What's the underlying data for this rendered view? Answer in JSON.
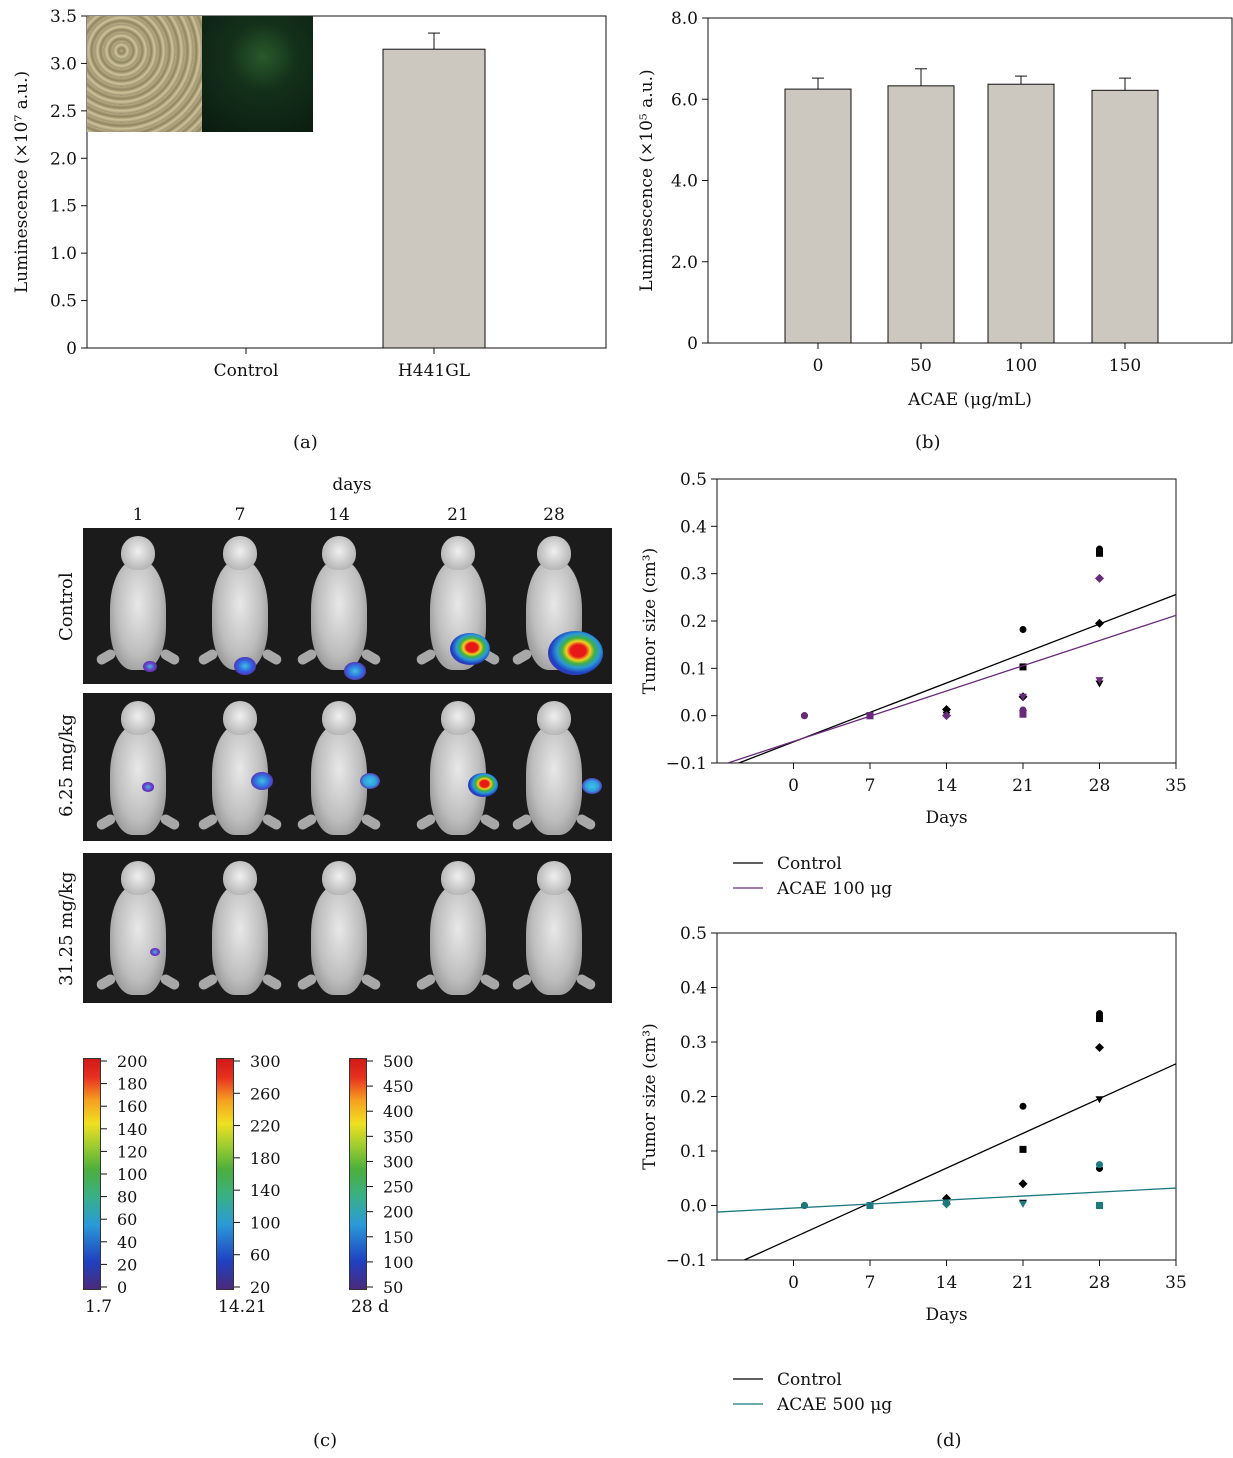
{
  "panel_captions": {
    "a": "(a)",
    "b": "(b)",
    "c": "(c)",
    "d": "(d)"
  },
  "chart_data": [
    {
      "id": "a",
      "type": "bar",
      "categories": [
        "Control",
        "H441GL"
      ],
      "values": [
        0,
        3.15
      ],
      "errors": [
        0,
        0.17
      ],
      "ylabel": "Luminescence (×10⁷ a.u.)",
      "ylim": [
        0,
        3.5
      ],
      "yticks": [
        "0",
        "0.5",
        "1.0",
        "1.5",
        "2.0",
        "2.5",
        "3.0",
        "3.5"
      ],
      "bar_color": "#cdc8bf"
    },
    {
      "id": "b",
      "type": "bar",
      "categories": [
        "0",
        "50",
        "100",
        "150"
      ],
      "values": [
        6.25,
        6.33,
        6.37,
        6.22
      ],
      "errors": [
        0.27,
        0.42,
        0.2,
        0.3
      ],
      "xlabel": "ACAE (μg/mL)",
      "ylabel": "Luminescence (×10⁵ a.u.)",
      "ylim": [
        0,
        8
      ],
      "yticks": [
        "0",
        "2.0",
        "4.0",
        "6.0",
        "8.0"
      ],
      "bar_color": "#cdc8bf"
    },
    {
      "id": "d-top",
      "type": "scatter",
      "xlabel": "Days",
      "ylabel": "Tumor size (cm³)",
      "xlim": [
        -7,
        35
      ],
      "ylim": [
        -0.1,
        0.5
      ],
      "xticks": [
        "0",
        "7",
        "14",
        "21",
        "28",
        "35"
      ],
      "yticks": [
        "−0.1",
        "0.0",
        "0.1",
        "0.2",
        "0.3",
        "0.4",
        "0.5"
      ],
      "series": [
        {
          "name": "Control",
          "color": "#000000",
          "points": [
            [
              1,
              0.0
            ],
            [
              7,
              0.0
            ],
            [
              14,
              0.013
            ],
            [
              14,
              0.002
            ],
            [
              21,
              0.182
            ],
            [
              21,
              0.103
            ],
            [
              21,
              0.04
            ],
            [
              21,
              0.005
            ],
            [
              28,
              0.352
            ],
            [
              28,
              0.343
            ],
            [
              28,
              0.195
            ],
            [
              28,
              0.068
            ]
          ],
          "fit": [
            [
              -5,
              -0.1
            ],
            [
              35,
              0.256
            ]
          ]
        },
        {
          "name": "ACAE 100 μg",
          "color": "#6a2a7a",
          "points": [
            [
              1,
              0.0
            ],
            [
              7,
              0.0
            ],
            [
              14,
              0.0
            ],
            [
              21,
              0.04
            ],
            [
              21,
              0.012
            ],
            [
              21,
              0.003
            ],
            [
              28,
              0.29
            ],
            [
              28,
              0.075
            ]
          ],
          "fit": [
            [
              -6,
              -0.1
            ],
            [
              35,
              0.212
            ]
          ]
        }
      ]
    },
    {
      "id": "d-bottom",
      "type": "scatter",
      "xlabel": "Days",
      "ylabel": "Tumor size (cm³)",
      "xlim": [
        -7,
        35
      ],
      "ylim": [
        -0.1,
        0.5
      ],
      "xticks": [
        "0",
        "7",
        "14",
        "21",
        "28",
        "35"
      ],
      "yticks": [
        "−0.1",
        "0.0",
        "0.1",
        "0.2",
        "0.3",
        "0.4",
        "0.5"
      ],
      "series": [
        {
          "name": "Control",
          "color": "#000000",
          "points": [
            [
              1,
              0.0
            ],
            [
              7,
              0.0
            ],
            [
              14,
              0.013
            ],
            [
              14,
              0.002
            ],
            [
              21,
              0.182
            ],
            [
              21,
              0.103
            ],
            [
              21,
              0.04
            ],
            [
              21,
              0.005
            ],
            [
              28,
              0.352
            ],
            [
              28,
              0.343
            ],
            [
              28,
              0.29
            ],
            [
              28,
              0.195
            ],
            [
              28,
              0.068
            ]
          ],
          "fit": [
            [
              -4.5,
              -0.1
            ],
            [
              35,
              0.26
            ]
          ]
        },
        {
          "name": "ACAE 500 μg",
          "color": "#1a7a80",
          "points": [
            [
              1,
              0.0
            ],
            [
              7,
              0.0
            ],
            [
              14,
              0.003
            ],
            [
              21,
              0.003
            ],
            [
              28,
              0.075
            ],
            [
              28,
              0.0
            ]
          ],
          "fit": [
            [
              -7,
              -0.012
            ],
            [
              35,
              0.032
            ]
          ]
        }
      ]
    }
  ],
  "imaging": {
    "axis_title": "days",
    "day_labels": [
      "1",
      "7",
      "14",
      "21",
      "28"
    ],
    "row_labels": [
      "Control",
      "6.25 mg/kg",
      "31.25 mg/kg"
    ],
    "colorbars": [
      {
        "ticks": [
          "200",
          "180",
          "160",
          "140",
          "120",
          "100",
          "80",
          "60",
          "40",
          "20",
          "0"
        ],
        "caption": "1.7"
      },
      {
        "ticks": [
          "300",
          "260",
          "220",
          "180",
          "140",
          "100",
          "60",
          "20"
        ],
        "caption": "14.21"
      },
      {
        "ticks": [
          "500",
          "450",
          "400",
          "350",
          "300",
          "250",
          "200",
          "150",
          "100",
          "50"
        ],
        "caption": "28 d"
      }
    ]
  }
}
